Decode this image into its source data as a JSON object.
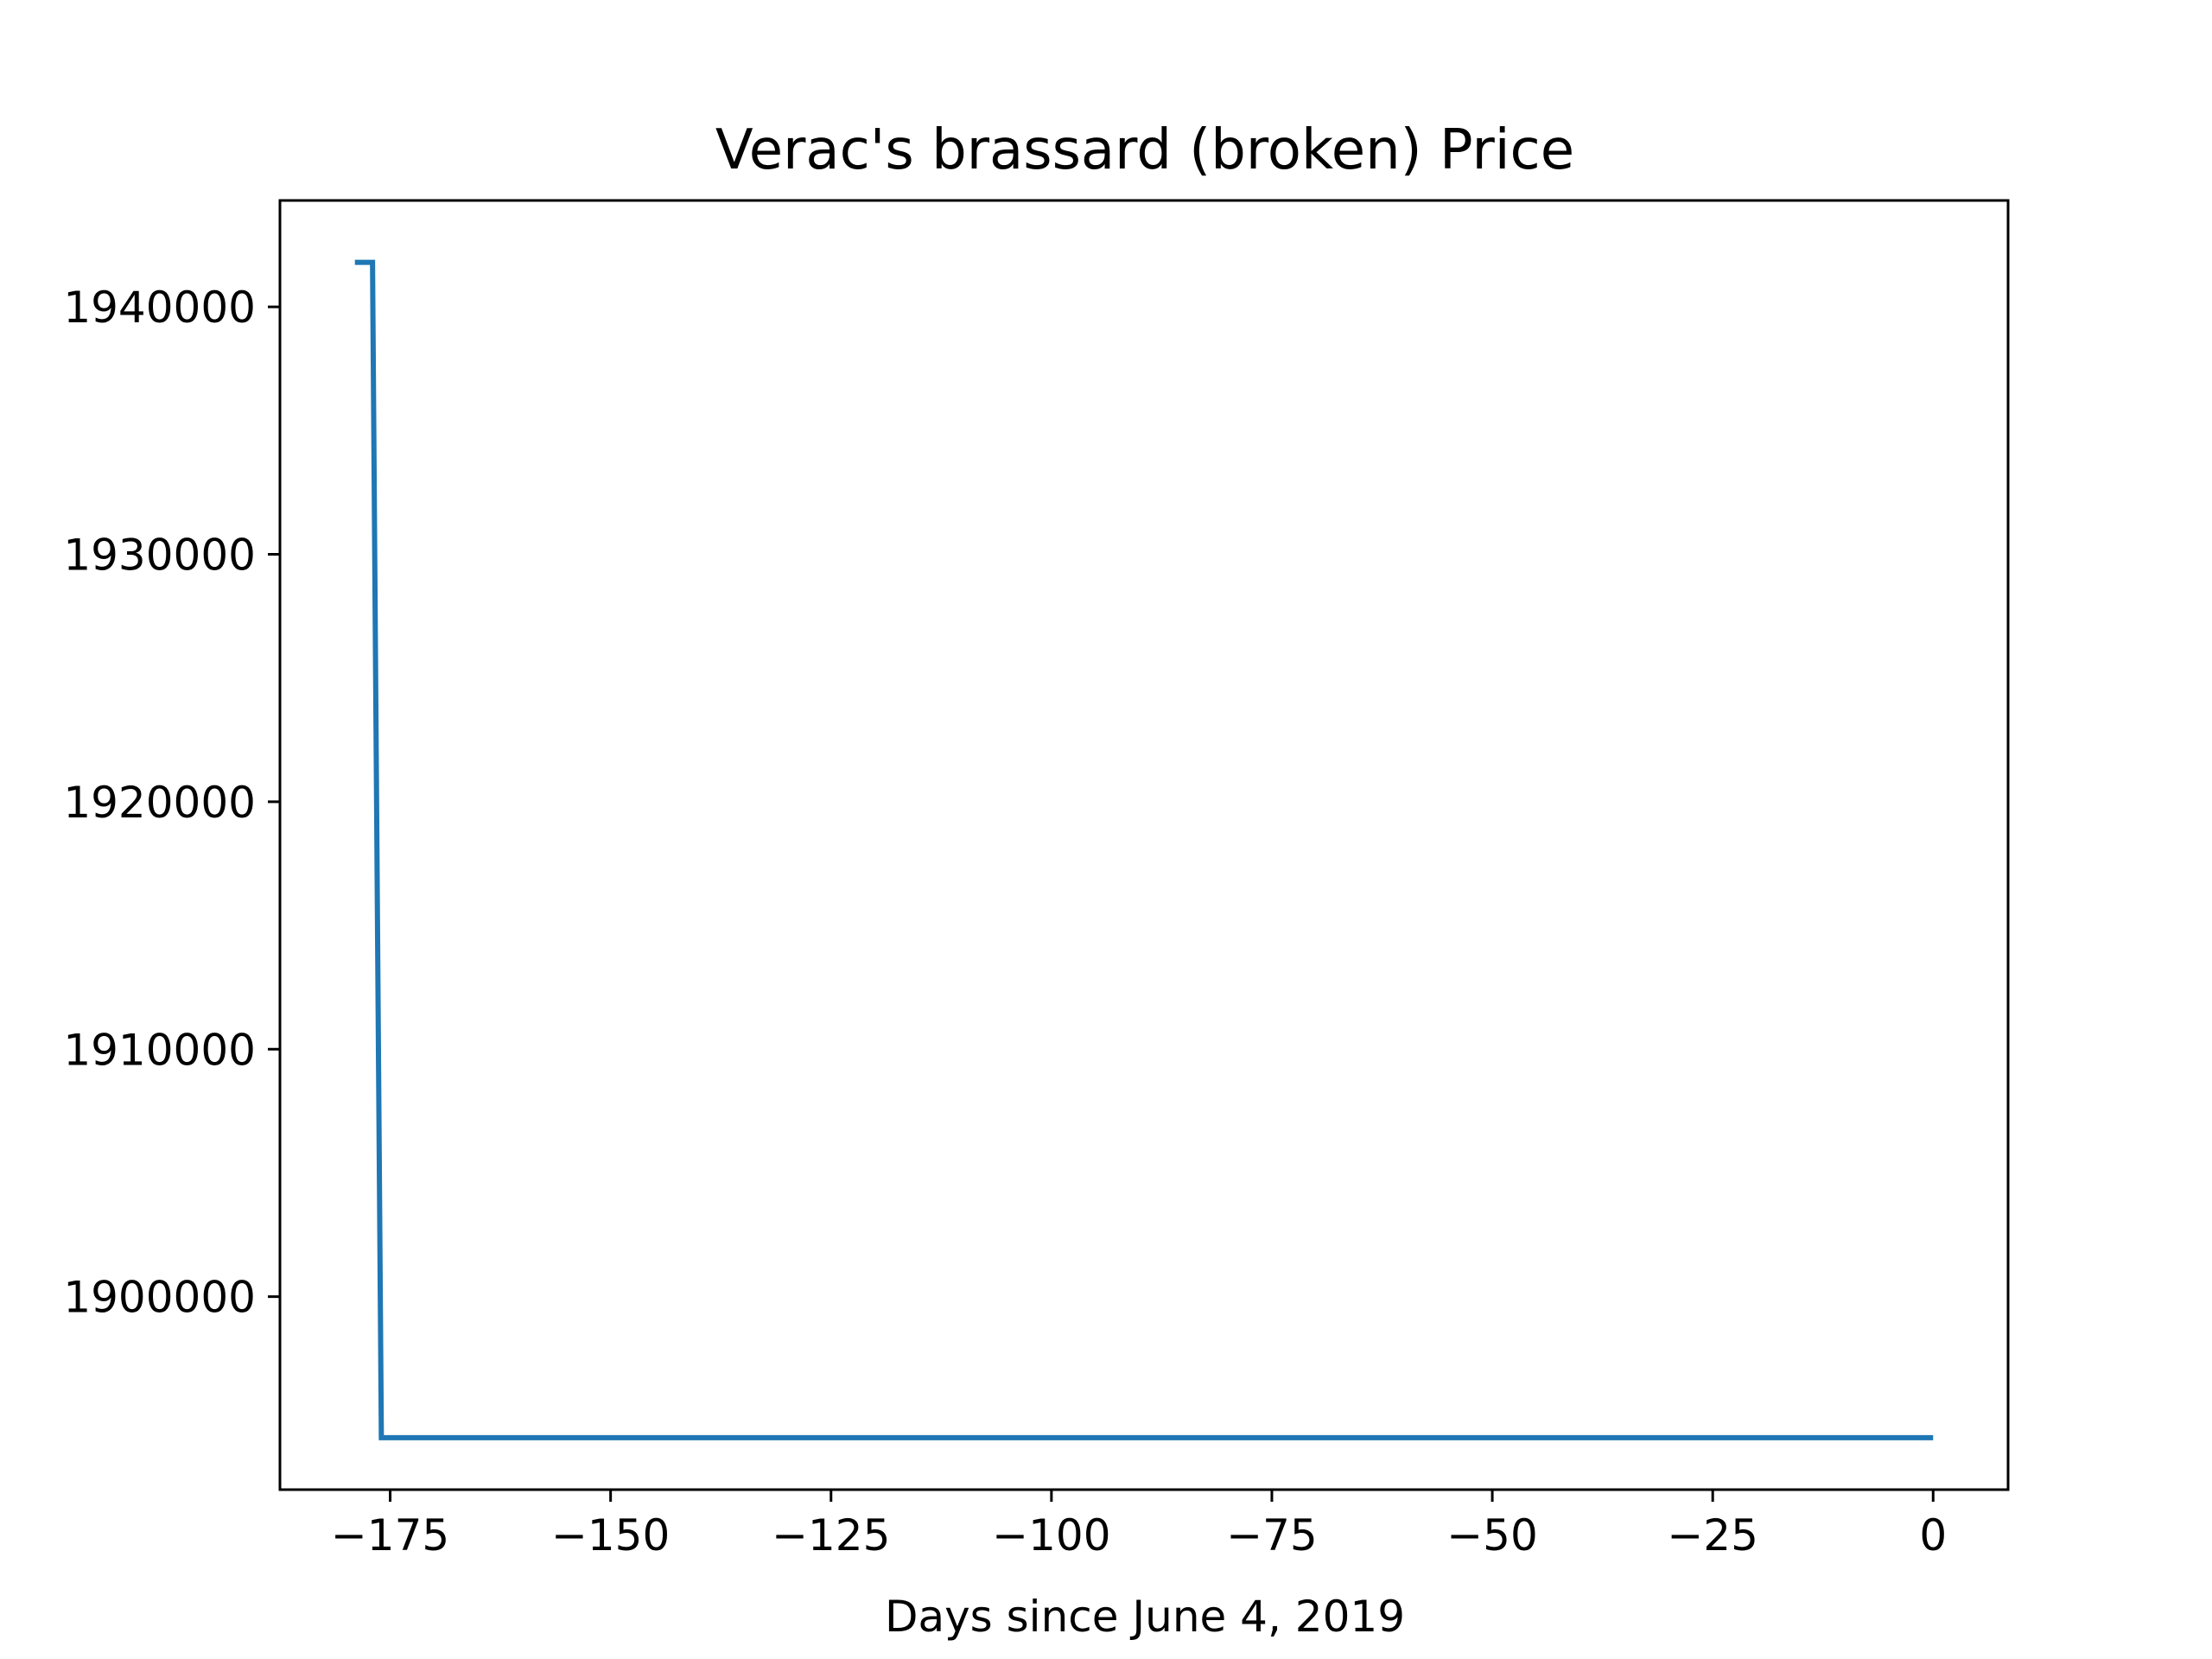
{
  "chart_data": {
    "type": "line",
    "title": "Verac's brassard (broken) Price",
    "xlabel": "Days since June 4, 2019",
    "ylabel": "",
    "xlim": [
      -187.5,
      8.5
    ],
    "ylim": [
      1892200,
      1944300
    ],
    "xticks": [
      -175,
      -150,
      -125,
      -100,
      -75,
      -50,
      -25,
      0
    ],
    "xtick_labels": [
      "−175",
      "−150",
      "−125",
      "−100",
      "−75",
      "−50",
      "−25",
      "0"
    ],
    "yticks": [
      1900000,
      1910000,
      1920000,
      1930000,
      1940000
    ],
    "ytick_labels": [
      "1900000",
      "1910000",
      "1920000",
      "1930000",
      "1940000"
    ],
    "grid": false,
    "series": [
      {
        "color": "#1f77b4",
        "x": [
          -179,
          -177,
          -176,
          0
        ],
        "y": [
          1941800,
          1941800,
          1894300,
          1894300
        ]
      }
    ]
  }
}
